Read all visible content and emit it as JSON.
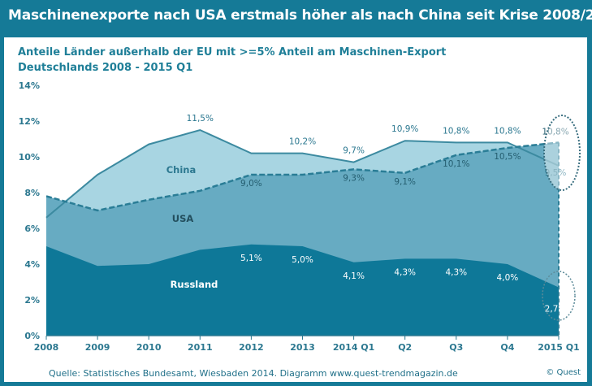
{
  "header": {
    "title": "Maschinenexporte nach USA erstmals höher als nach China seit Krise 2008/2009"
  },
  "chart_data": {
    "type": "area",
    "title": "Anteile Länder außerhalb der EU mit >=5% Anteil am Maschinen-Export",
    "subtitle": "Deutschlands 2008 - 2015 Q1",
    "xlabel": "",
    "ylabel": "",
    "categories": [
      "2008",
      "2009",
      "2010",
      "2011",
      "2012",
      "2013",
      "2014 Q1",
      "Q2",
      "Q3",
      "Q4",
      "2015 Q1"
    ],
    "y_ticks": [
      "0%",
      "2%",
      "4%",
      "6%",
      "8%",
      "10%",
      "12%",
      "14%"
    ],
    "ylim": [
      0,
      14
    ],
    "series": [
      {
        "name": "China",
        "color": "#a8d5e2",
        "values": [
          6.6,
          9.0,
          10.7,
          11.5,
          10.2,
          10.2,
          9.7,
          10.9,
          10.8,
          10.8,
          9.5
        ],
        "labels": [
          null,
          null,
          null,
          "11,5%",
          null,
          "10,2%",
          "9,7%",
          "10,9%",
          "10,8%",
          "10,8%",
          "9,5%"
        ]
      },
      {
        "name": "USA",
        "color": "#67abc2",
        "values": [
          7.8,
          7.0,
          7.6,
          8.1,
          9.0,
          9.0,
          9.3,
          9.1,
          10.1,
          10.5,
          10.8
        ],
        "labels": [
          null,
          null,
          null,
          null,
          "9,0%",
          null,
          "9,3%",
          "9,1%",
          "10,1%",
          "10,5%",
          "10,8%"
        ]
      },
      {
        "name": "Russland",
        "color": "#0e7898",
        "values": [
          5.0,
          3.9,
          4.0,
          4.8,
          5.1,
          5.0,
          4.1,
          4.3,
          4.3,
          4.0,
          2.7
        ],
        "labels": [
          null,
          null,
          null,
          null,
          "5,1%",
          "5,0%",
          "4,1%",
          "4,3%",
          "4,3%",
          "4,0%",
          "2,7%"
        ]
      }
    ]
  },
  "footer": {
    "source": "Quelle: Statistisches Bundesamt, Wiesbaden 2014. Diagramm  www.quest-trendmagazin.de",
    "copyright": "© Quest"
  }
}
